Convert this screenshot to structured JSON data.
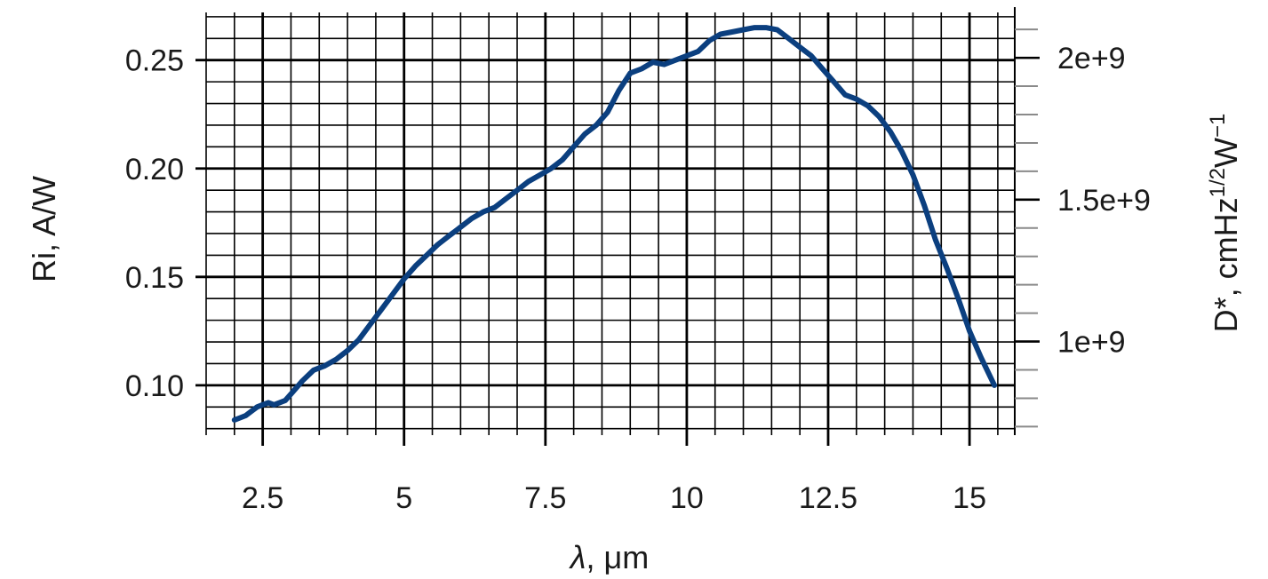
{
  "chart_data": {
    "type": "line",
    "title": "",
    "xlabel_symbol": "λ",
    "xlabel_rest": ", μm",
    "ylabel": "Ri, A/W",
    "y2label_base": "D*, cmHz",
    "y2label_exp1": "1/2",
    "y2label_mid": "W",
    "y2label_exp2": "−1",
    "xlim": [
      1.5,
      15.8
    ],
    "ylim": [
      0.077,
      0.272
    ],
    "y2lim": [
      670000000.0,
      2160000000.0
    ],
    "xticks": [
      2.5,
      5,
      7.5,
      10,
      12.5,
      15
    ],
    "xtick_labels": [
      "2.5",
      "5",
      "7.5",
      "10",
      "12.5",
      "15"
    ],
    "yticks": [
      0.1,
      0.15,
      0.2,
      0.25
    ],
    "ytick_labels": [
      "0.10",
      "0.15",
      "0.20",
      "0.25"
    ],
    "y2ticks": [
      1000000000.0,
      1500000000.0,
      2000000000.0
    ],
    "y2tick_labels": [
      "1e+9",
      "1.5e+9",
      "2e+9"
    ],
    "grid": true,
    "series": [
      {
        "color": "#0b3f7f",
        "x": [
          2.0,
          2.1,
          2.2,
          2.3,
          2.4,
          2.5,
          2.6,
          2.7,
          2.8,
          2.9,
          3.0,
          3.2,
          3.4,
          3.6,
          3.8,
          4.0,
          4.2,
          4.4,
          4.6,
          4.8,
          5.0,
          5.2,
          5.4,
          5.6,
          5.8,
          6.0,
          6.2,
          6.4,
          6.6,
          6.8,
          7.0,
          7.2,
          7.4,
          7.6,
          7.8,
          8.0,
          8.2,
          8.4,
          8.6,
          8.8,
          9.0,
          9.2,
          9.4,
          9.6,
          9.8,
          10.0,
          10.2,
          10.4,
          10.6,
          10.8,
          11.0,
          11.2,
          11.4,
          11.6,
          11.8,
          12.0,
          12.2,
          12.4,
          12.6,
          12.8,
          13.0,
          13.2,
          13.4,
          13.6,
          13.8,
          14.0,
          14.2,
          14.4,
          14.6,
          14.8,
          15.0,
          15.2,
          15.44
        ],
        "y": [
          0.084,
          0.085,
          0.086,
          0.088,
          0.09,
          0.091,
          0.092,
          0.091,
          0.092,
          0.093,
          0.096,
          0.102,
          0.107,
          0.109,
          0.112,
          0.116,
          0.121,
          0.128,
          0.135,
          0.142,
          0.149,
          0.155,
          0.16,
          0.165,
          0.169,
          0.173,
          0.177,
          0.18,
          0.182,
          0.186,
          0.19,
          0.194,
          0.197,
          0.2,
          0.204,
          0.21,
          0.216,
          0.22,
          0.226,
          0.236,
          0.244,
          0.246,
          0.249,
          0.248,
          0.25,
          0.252,
          0.254,
          0.259,
          0.262,
          0.263,
          0.264,
          0.265,
          0.265,
          0.264,
          0.26,
          0.256,
          0.252,
          0.246,
          0.24,
          0.234,
          0.232,
          0.229,
          0.224,
          0.217,
          0.208,
          0.197,
          0.183,
          0.167,
          0.154,
          0.14,
          0.125,
          0.113,
          0.1
        ]
      }
    ]
  }
}
